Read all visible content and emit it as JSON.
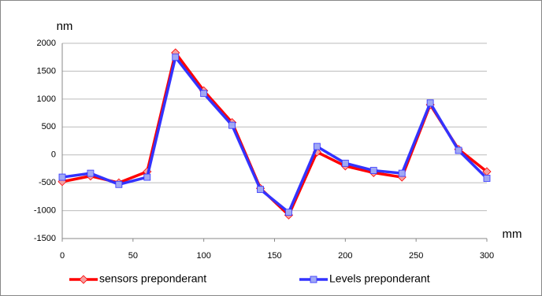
{
  "chart_data": {
    "type": "line",
    "x_label": "mm",
    "y_label": "nm",
    "x": [
      0,
      20,
      40,
      60,
      80,
      100,
      120,
      140,
      160,
      180,
      200,
      220,
      240,
      260,
      280,
      300
    ],
    "series": [
      {
        "name": "sensors preponderant",
        "color": "#ff0000",
        "marker": "diamond",
        "marker_color": "#f4a0a0",
        "values": [
          -480,
          -380,
          -500,
          -300,
          1830,
          1150,
          580,
          -600,
          -1080,
          50,
          -200,
          -320,
          -400,
          900,
          100,
          -300
        ]
      },
      {
        "name": "Levels preponderant",
        "color": "#3333ff",
        "marker": "square",
        "marker_color": "#a0a8f4",
        "values": [
          -400,
          -330,
          -530,
          -400,
          1750,
          1100,
          530,
          -620,
          -1030,
          150,
          -150,
          -280,
          -330,
          930,
          80,
          -420
        ]
      }
    ],
    "xlim": [
      0,
      300
    ],
    "xticks": [
      0,
      50,
      100,
      150,
      200,
      250,
      300
    ],
    "ylim": [
      -1500,
      2000
    ],
    "yticks": [
      -1500,
      -1000,
      -500,
      0,
      500,
      1000,
      1500,
      2000
    ],
    "grid": true,
    "legend": "bottom"
  }
}
